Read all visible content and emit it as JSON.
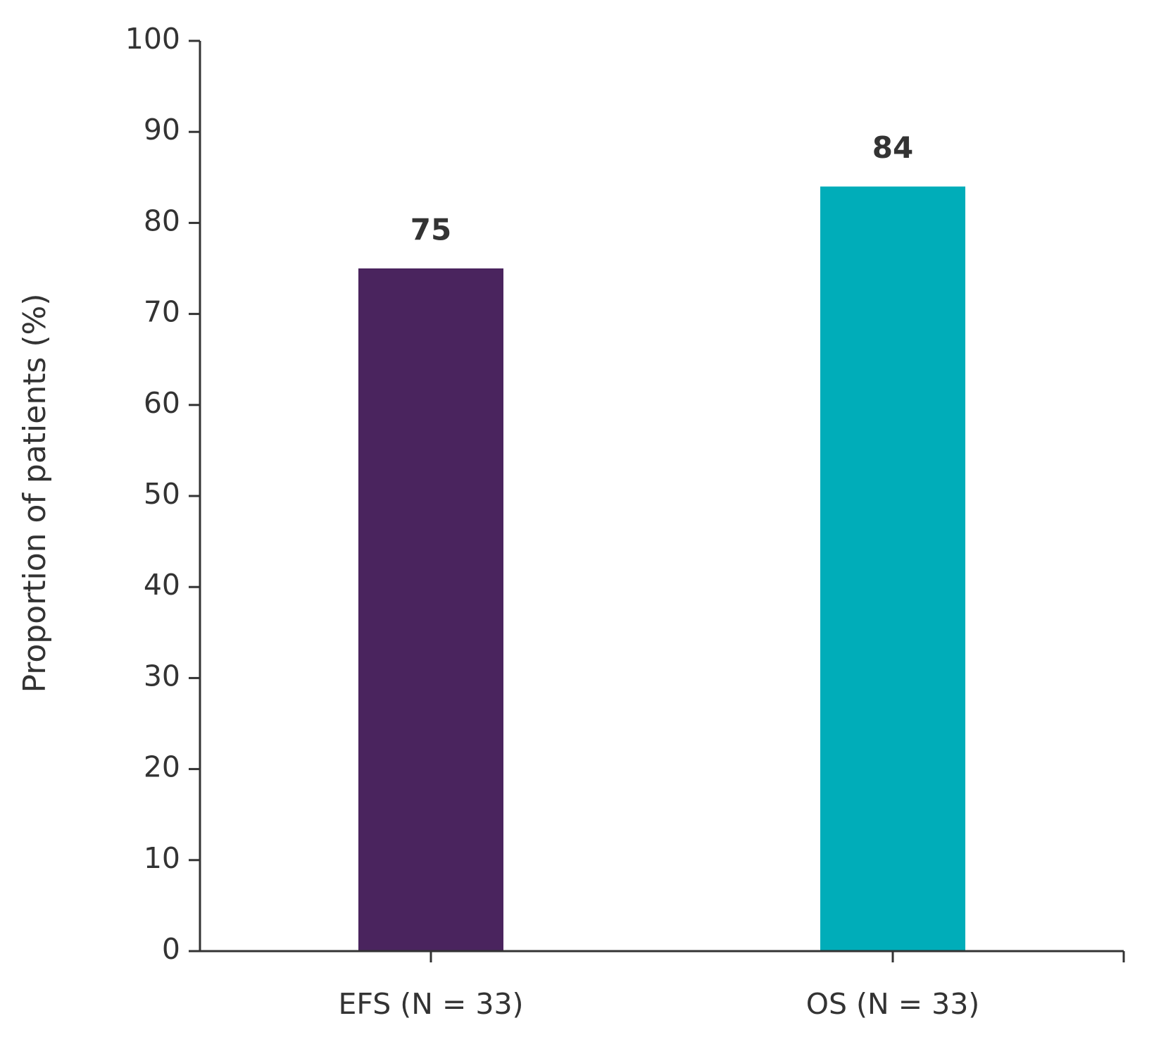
{
  "chart_data": {
    "type": "bar",
    "y_label": "Proportion of patients (%)",
    "categories": [
      "EFS (N = 33)",
      "OS (N = 33)"
    ],
    "values": [
      75,
      84
    ],
    "colors": [
      "#4a245e",
      "#00adb9"
    ],
    "ylim": [
      0,
      100
    ],
    "yticks": [
      0,
      10,
      20,
      30,
      40,
      50,
      60,
      70,
      80,
      90,
      100
    ],
    "grid": false
  }
}
